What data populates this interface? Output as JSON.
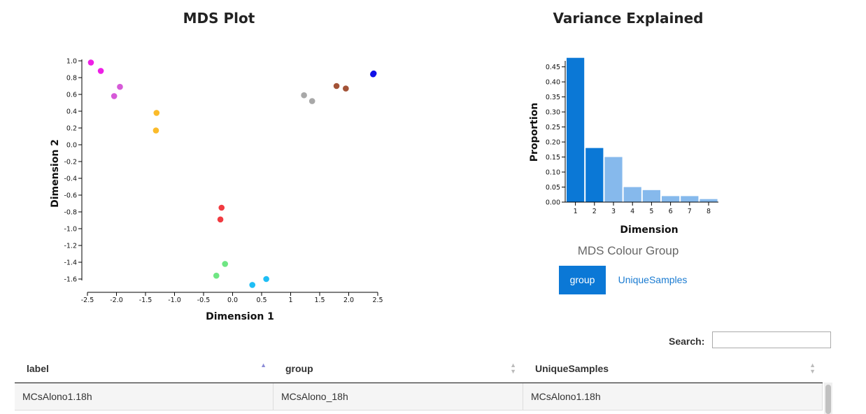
{
  "mds_plot": {
    "title": "MDS Plot"
  },
  "variance_plot": {
    "title": "Variance Explained"
  },
  "colour_group": {
    "title": "MDS Colour Group",
    "options": [
      "group",
      "UniqueSamples"
    ],
    "selected": "group"
  },
  "search": {
    "label": "Search:",
    "value": "",
    "placeholder": ""
  },
  "table": {
    "columns": [
      "label",
      "group",
      "UniqueSamples"
    ],
    "rows": [
      [
        "MCsAlono1.18h",
        "MCsAlono_18h",
        "MCsAlono1.18h"
      ]
    ]
  },
  "colors": {
    "bar_primary": "#0b78d6",
    "bar_secondary": "#86b9ec",
    "button_active": "#0b78d6",
    "link": "#1a7bd1"
  },
  "chart_data": [
    {
      "type": "scatter",
      "title": "MDS Plot",
      "xlabel": "Dimension 1",
      "ylabel": "Dimension 2",
      "xlim": [
        -2.5,
        2.5
      ],
      "ylim": [
        -1.6,
        1.0
      ],
      "xticks": [
        -2.5,
        -2.0,
        -1.5,
        -1.0,
        -0.5,
        0.0,
        0.5,
        1.0,
        1.5,
        2.0,
        2.5
      ],
      "xtick_labels": [
        "-2.5",
        "-2.0",
        "-1.5",
        "-1.0",
        "-0.5",
        "0.0",
        "0.5",
        "1",
        "1.5",
        "2.0",
        "2.5"
      ],
      "yticks": [
        1.0,
        0.8,
        0.6,
        0.4,
        0.2,
        0.0,
        -0.2,
        -0.4,
        -0.6,
        -0.8,
        -1.0,
        -1.2,
        -1.4,
        -1.6
      ],
      "ytick_labels": [
        "1.0",
        "0.8",
        "0.6",
        "0.4",
        "0.2",
        "0.0",
        "-0.2",
        "-0.4",
        "-0.6",
        "-0.8",
        "-1.0",
        "-1.2",
        "-1.4",
        "-1.6"
      ],
      "points": [
        {
          "x": -2.44,
          "y": 0.98,
          "color": "#ee1fe6"
        },
        {
          "x": -2.27,
          "y": 0.88,
          "color": "#ee1fe6"
        },
        {
          "x": -2.04,
          "y": 0.58,
          "color": "#d65ad8"
        },
        {
          "x": -1.94,
          "y": 0.69,
          "color": "#d65ad8"
        },
        {
          "x": -1.31,
          "y": 0.38,
          "color": "#fbbb2a"
        },
        {
          "x": -1.32,
          "y": 0.17,
          "color": "#fbbb2a"
        },
        {
          "x": -0.19,
          "y": -0.75,
          "color": "#f13b41"
        },
        {
          "x": -0.21,
          "y": -0.89,
          "color": "#f13b41"
        },
        {
          "x": -0.13,
          "y": -1.42,
          "color": "#6fe683"
        },
        {
          "x": -0.28,
          "y": -1.56,
          "color": "#6fe683"
        },
        {
          "x": 0.34,
          "y": -1.67,
          "color": "#1fbef5"
        },
        {
          "x": 0.58,
          "y": -1.6,
          "color": "#1fbef5"
        },
        {
          "x": 1.23,
          "y": 0.59,
          "color": "#a8a8a8"
        },
        {
          "x": 1.37,
          "y": 0.52,
          "color": "#a8a8a8"
        },
        {
          "x": 1.79,
          "y": 0.7,
          "color": "#a35337"
        },
        {
          "x": 1.95,
          "y": 0.67,
          "color": "#a35337"
        },
        {
          "x": 2.42,
          "y": 0.84,
          "color": "#1010e8"
        },
        {
          "x": 2.43,
          "y": 0.85,
          "color": "#1010e8"
        }
      ]
    },
    {
      "type": "bar",
      "title": "Variance Explained",
      "xlabel": "Dimension",
      "ylabel": "Proportion",
      "categories": [
        "1",
        "2",
        "3",
        "4",
        "5",
        "6",
        "7",
        "8"
      ],
      "values": [
        0.48,
        0.18,
        0.15,
        0.05,
        0.04,
        0.02,
        0.02,
        0.01
      ],
      "highlighted": [
        true,
        true,
        false,
        false,
        false,
        false,
        false,
        false
      ],
      "ylim": [
        0,
        0.47
      ],
      "yticks": [
        0.0,
        0.05,
        0.1,
        0.15,
        0.2,
        0.25,
        0.3,
        0.35,
        0.4,
        0.45
      ],
      "ytick_labels": [
        "0.00",
        "0.05",
        "0.10",
        "0.15",
        "0.20",
        "0.25",
        "0.30",
        "0.35",
        "0.40",
        "0.45"
      ]
    }
  ]
}
